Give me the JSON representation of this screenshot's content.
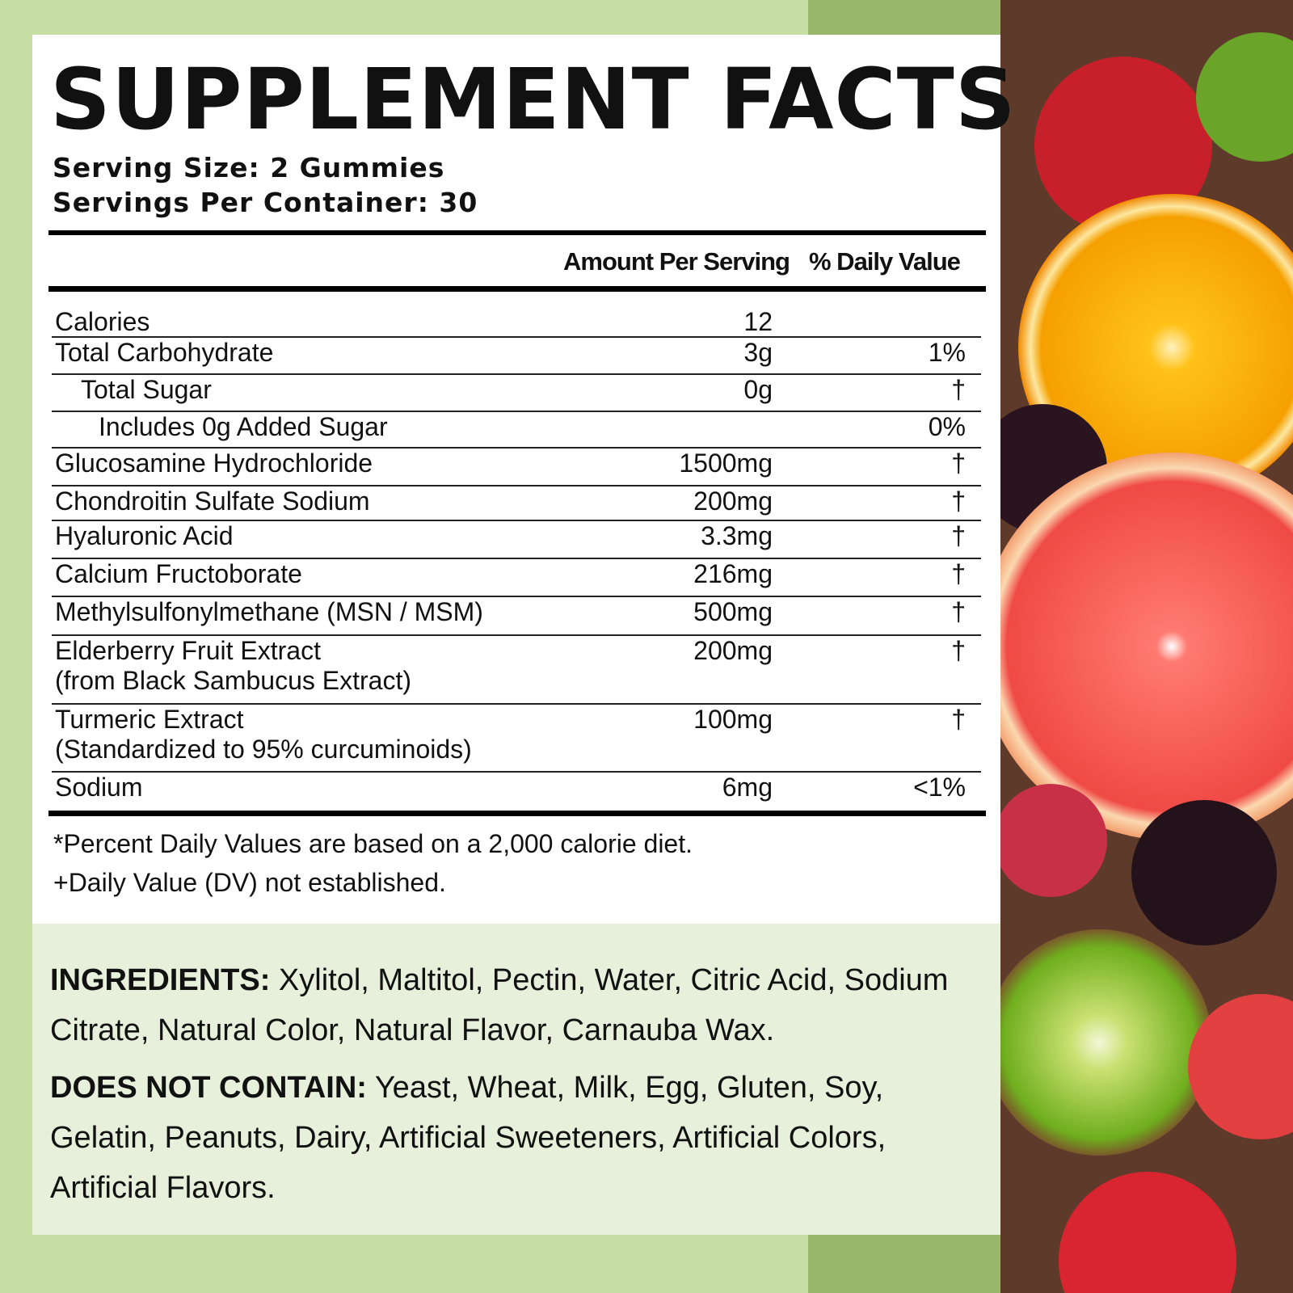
{
  "title": "SUPPLEMENT FACTS",
  "serving_size": "Serving Size: 2 Gummies",
  "servings_per_container": "Servings Per Container: 30",
  "columns": {
    "amount": "Amount Per Serving",
    "daily_value": "% Daily Value"
  },
  "rows": [
    {
      "name": "Calories",
      "amount": "12",
      "dv": ""
    },
    {
      "name": "Total Carbohydrate",
      "amount": "3g",
      "dv": "1%"
    },
    {
      "name": "Total Sugar",
      "amount": "0g",
      "dv": "†"
    },
    {
      "name": "Includes 0g Added Sugar",
      "amount": "",
      "dv": "0%"
    },
    {
      "name": "Glucosamine Hydrochloride",
      "amount": "1500mg",
      "dv": "†"
    },
    {
      "name": "Chondroitin Sulfate Sodium",
      "amount": "200mg",
      "dv": "†"
    },
    {
      "name": "Hyaluronic Acid",
      "amount": "3.3mg",
      "dv": "†"
    },
    {
      "name": "Calcium Fructoborate",
      "amount": "216mg",
      "dv": "†"
    },
    {
      "name": "Methylsulfonylmethane (MSN / MSM)",
      "amount": "500mg",
      "dv": "†"
    },
    {
      "name": "Elderberry Fruit Extract",
      "sub": "(from Black Sambucus Extract)",
      "amount": "200mg",
      "dv": "†"
    },
    {
      "name": "Turmeric Extract",
      "sub": "(Standardized to 95% curcuminoids)",
      "amount": "100mg",
      "dv": "†"
    },
    {
      "name": "Sodium",
      "amount": "6mg",
      "dv": "<1%"
    }
  ],
  "footnotes": [
    "*Percent Daily Values are based on a 2,000 calorie diet.",
    "+Daily Value (DV) not established."
  ],
  "ingredients": {
    "label": "INGREDIENTS:",
    "text": " Xylitol, Maltitol, Pectin, Water, Citric Acid, Sodium Citrate, Natural Color, Natural Flavor, Carnauba Wax."
  },
  "does_not_contain": {
    "label": "DOES NOT CONTAIN:",
    "text": " Yeast, Wheat, Milk, Egg, Gluten, Soy, Gelatin, Peanuts, Dairy, Artificial Sweeteners, Artificial Colors, Artificial Flavors."
  },
  "colors": {
    "background": "#c6dda3",
    "lower_panel": "#e7f0da"
  }
}
